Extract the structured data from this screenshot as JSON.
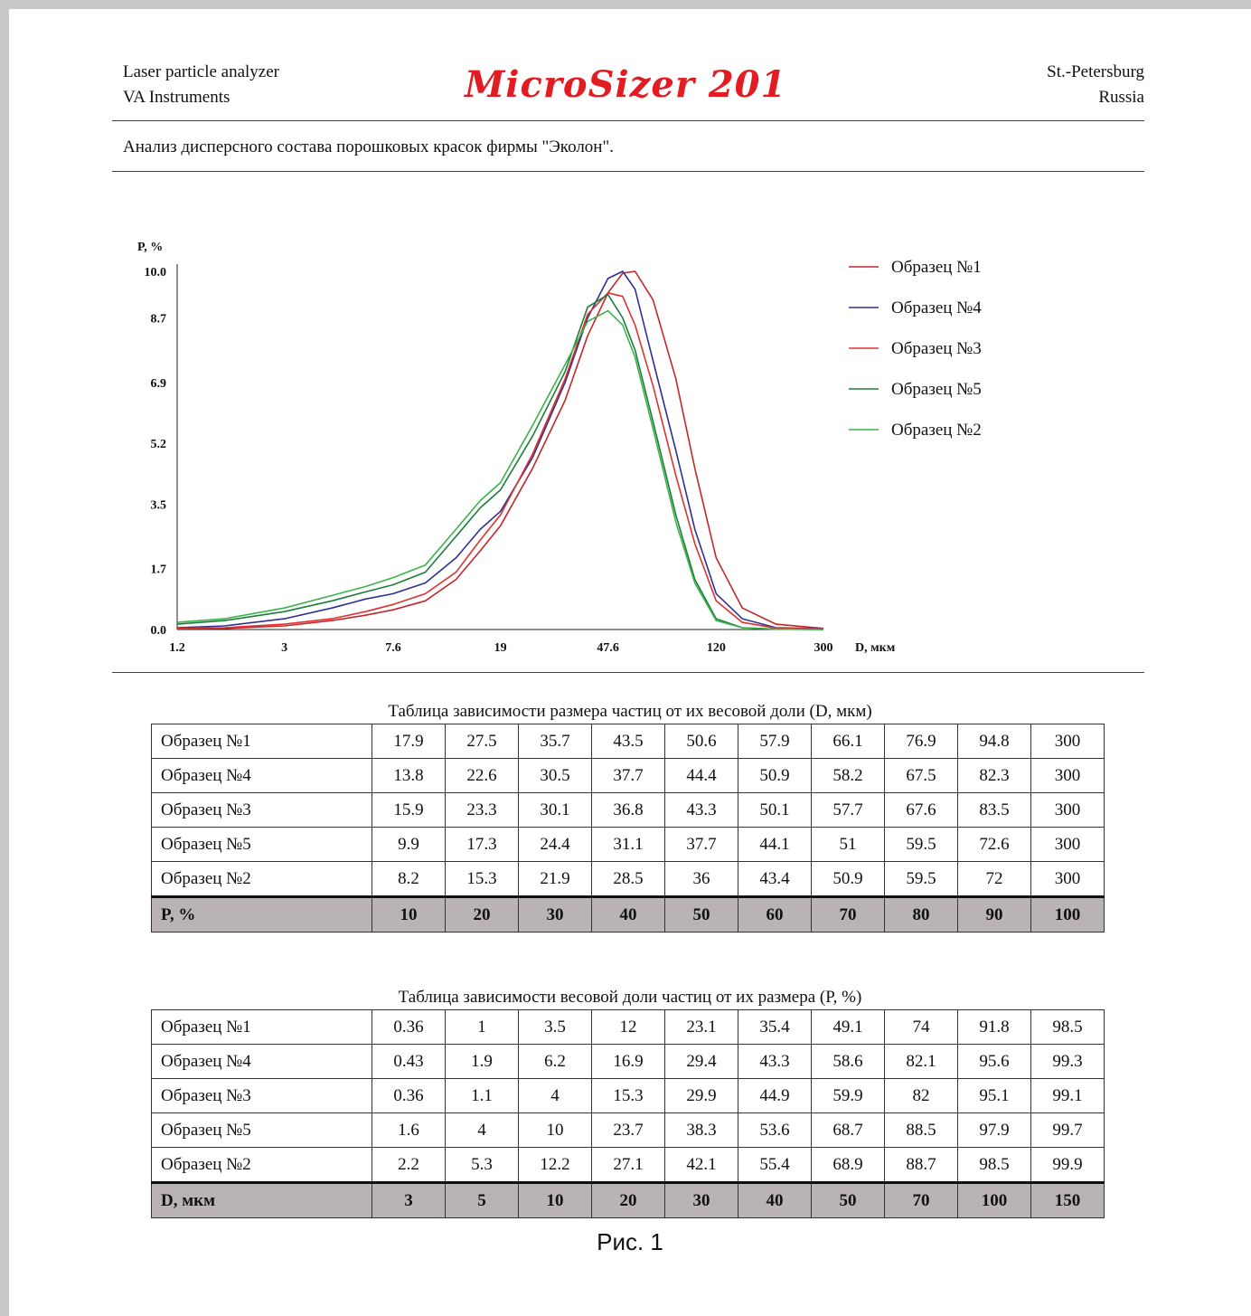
{
  "header": {
    "left_line1": "Laser particle analyzer",
    "left_line2": "VA Instruments",
    "logo": "MicroSizer 201",
    "right_line1": "St.-Petersburg",
    "right_line2": "Russia"
  },
  "subtitle": "Анализ дисперсного состава порошковых красок фирмы \"Эколон\".",
  "chart_data": {
    "type": "line",
    "ylabel": "P, %",
    "xlabel": "D, мкм",
    "x_scale": "log",
    "xlim": [
      1.2,
      300
    ],
    "ylim": [
      0,
      10
    ],
    "x_ticks": [
      "1.2",
      "3",
      "7.6",
      "19",
      "47.6",
      "120",
      "300"
    ],
    "y_ticks": [
      "0.0",
      "1.7",
      "3.5",
      "5.2",
      "6.9",
      "8.7",
      "10.0"
    ],
    "grid": false,
    "legend_position": "top-right",
    "x": [
      1.2,
      1.8,
      3,
      4.5,
      6,
      7.6,
      10,
      13,
      16,
      19,
      25,
      33,
      40,
      47.6,
      54,
      60,
      70,
      85,
      100,
      120,
      150,
      200,
      300
    ],
    "series": [
      {
        "name": "Образец №1",
        "color": "#c0272d",
        "values": [
          0.02,
          0.03,
          0.1,
          0.25,
          0.4,
          0.55,
          0.8,
          1.4,
          2.2,
          2.9,
          4.5,
          6.4,
          8.2,
          9.4,
          9.95,
          10.0,
          9.2,
          7.0,
          4.5,
          2.0,
          0.6,
          0.15,
          0.03
        ]
      },
      {
        "name": "Образец №4",
        "color": "#2e3192",
        "values": [
          0.05,
          0.1,
          0.3,
          0.6,
          0.85,
          1.0,
          1.3,
          2.0,
          2.8,
          3.3,
          4.8,
          6.9,
          8.7,
          9.8,
          10.0,
          9.5,
          7.5,
          5.0,
          2.8,
          1.0,
          0.3,
          0.05,
          0.02
        ]
      },
      {
        "name": "Образец №3",
        "color": "#e03030",
        "values": [
          0.03,
          0.05,
          0.15,
          0.3,
          0.5,
          0.7,
          1.0,
          1.6,
          2.5,
          3.2,
          4.9,
          7.0,
          8.8,
          9.4,
          9.3,
          8.5,
          6.8,
          4.3,
          2.4,
          0.8,
          0.2,
          0.04,
          0.01
        ]
      },
      {
        "name": "Образец №5",
        "color": "#1e7b3c",
        "values": [
          0.15,
          0.25,
          0.5,
          0.8,
          1.05,
          1.25,
          1.6,
          2.6,
          3.4,
          3.9,
          5.4,
          7.2,
          9.0,
          9.35,
          8.7,
          7.8,
          5.8,
          3.2,
          1.4,
          0.3,
          0.05,
          0.01,
          0.0
        ]
      },
      {
        "name": "Образец №2",
        "color": "#3bb34a",
        "values": [
          0.2,
          0.3,
          0.6,
          0.95,
          1.2,
          1.45,
          1.8,
          2.8,
          3.6,
          4.1,
          5.7,
          7.4,
          8.6,
          8.9,
          8.5,
          7.6,
          5.6,
          3.0,
          1.3,
          0.25,
          0.05,
          0.01,
          0.0
        ]
      }
    ]
  },
  "table1": {
    "title": "Таблица зависимости размера частиц от их весовой доли (D, мкм)",
    "rows": [
      {
        "label": "Образец №1",
        "cells": [
          "17.9",
          "27.5",
          "35.7",
          "43.5",
          "50.6",
          "57.9",
          "66.1",
          "76.9",
          "94.8",
          "300"
        ]
      },
      {
        "label": "Образец №4",
        "cells": [
          "13.8",
          "22.6",
          "30.5",
          "37.7",
          "44.4",
          "50.9",
          "58.2",
          "67.5",
          "82.3",
          "300"
        ]
      },
      {
        "label": "Образец №3",
        "cells": [
          "15.9",
          "23.3",
          "30.1",
          "36.8",
          "43.3",
          "50.1",
          "57.7",
          "67.6",
          "83.5",
          "300"
        ]
      },
      {
        "label": "Образец №5",
        "cells": [
          "9.9",
          "17.3",
          "24.4",
          "31.1",
          "37.7",
          "44.1",
          "51",
          "59.5",
          "72.6",
          "300"
        ]
      },
      {
        "label": "Образец №2",
        "cells": [
          "8.2",
          "15.3",
          "21.9",
          "28.5",
          "36",
          "43.4",
          "50.9",
          "59.5",
          "72",
          "300"
        ]
      }
    ],
    "footer": {
      "label": "P, %",
      "cells": [
        "10",
        "20",
        "30",
        "40",
        "50",
        "60",
        "70",
        "80",
        "90",
        "100"
      ]
    }
  },
  "table2": {
    "title": "Таблица зависимости весовой доли частиц от их размера (P, %)",
    "rows": [
      {
        "label": "Образец №1",
        "cells": [
          "0.36",
          "1",
          "3.5",
          "12",
          "23.1",
          "35.4",
          "49.1",
          "74",
          "91.8",
          "98.5"
        ]
      },
      {
        "label": "Образец №4",
        "cells": [
          "0.43",
          "1.9",
          "6.2",
          "16.9",
          "29.4",
          "43.3",
          "58.6",
          "82.1",
          "95.6",
          "99.3"
        ]
      },
      {
        "label": "Образец №3",
        "cells": [
          "0.36",
          "1.1",
          "4",
          "15.3",
          "29.9",
          "44.9",
          "59.9",
          "82",
          "95.1",
          "99.1"
        ]
      },
      {
        "label": "Образец №5",
        "cells": [
          "1.6",
          "4",
          "10",
          "23.7",
          "38.3",
          "53.6",
          "68.7",
          "88.5",
          "97.9",
          "99.7"
        ]
      },
      {
        "label": "Образец №2",
        "cells": [
          "2.2",
          "5.3",
          "12.2",
          "27.1",
          "42.1",
          "55.4",
          "68.9",
          "88.7",
          "98.5",
          "99.9"
        ]
      }
    ],
    "footer": {
      "label": "D, мкм",
      "cells": [
        "3",
        "5",
        "10",
        "20",
        "30",
        "40",
        "50",
        "70",
        "100",
        "150"
      ]
    }
  },
  "caption": "Рис. 1"
}
